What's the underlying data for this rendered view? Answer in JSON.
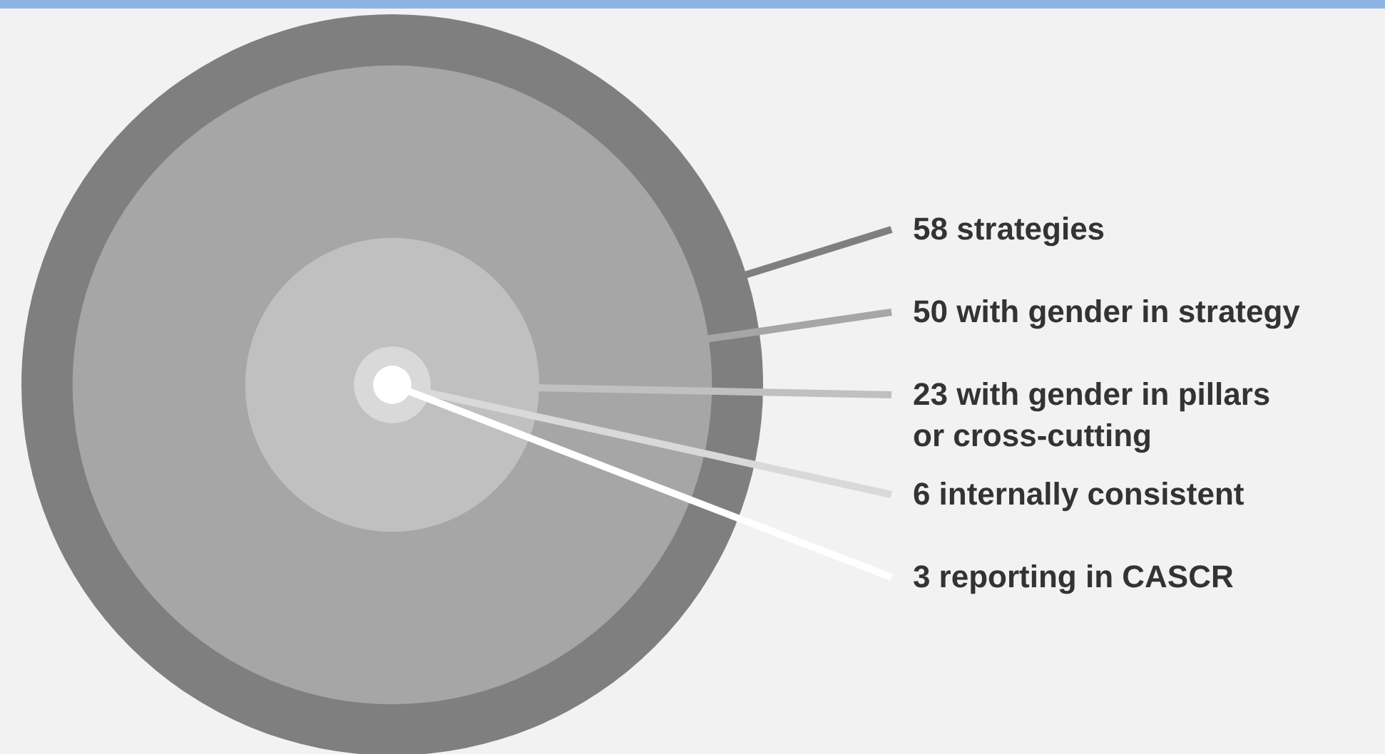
{
  "chart_data": {
    "type": "other",
    "categories": [
      "strategies",
      "with gender in strategy",
      "with gender in pillars or cross-cutting",
      "internally consistent",
      "reporting in CASCR"
    ],
    "values": [
      58,
      50,
      23,
      6,
      3
    ],
    "colors": [
      "#7f7f7f",
      "#a6a6a6",
      "#c0c0c0",
      "#d9d9d9",
      "#ffffff"
    ],
    "data_labels": true
  }
}
